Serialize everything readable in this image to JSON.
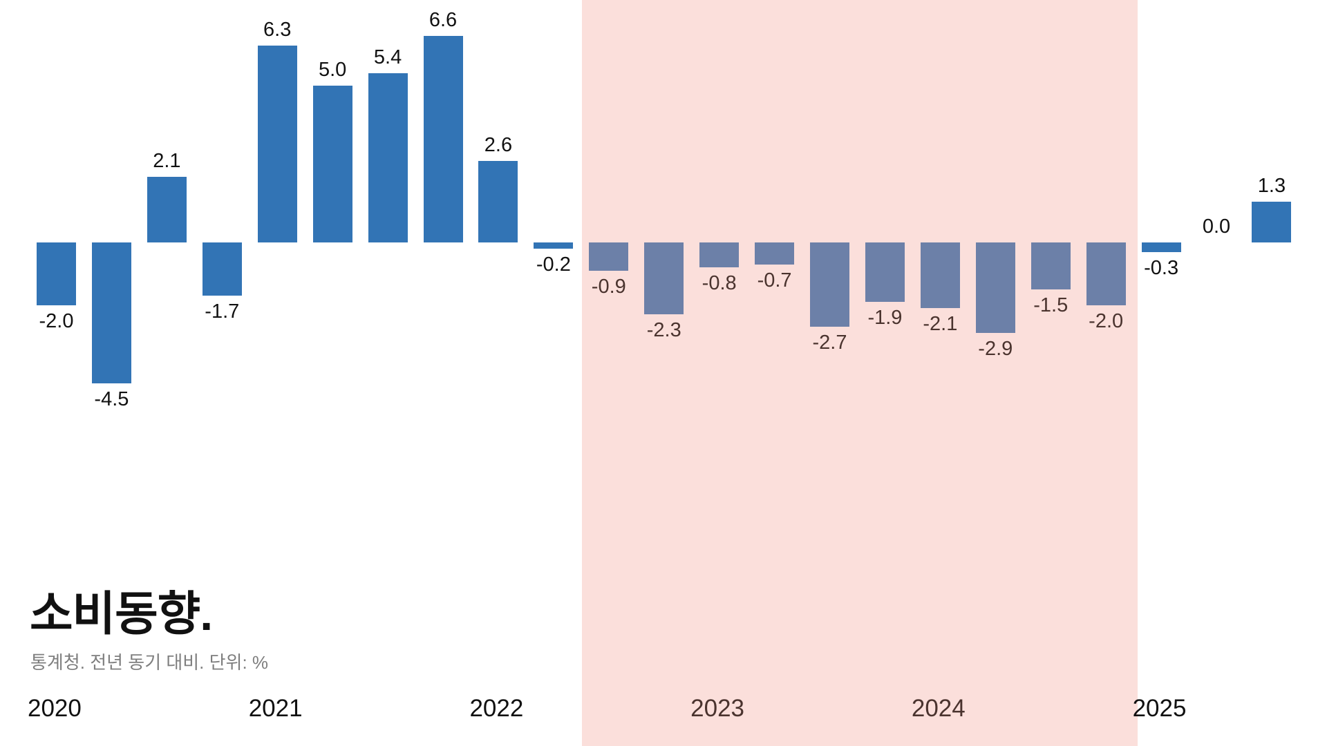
{
  "chart_data": {
    "type": "bar",
    "title": "소비동향.",
    "subtitle": "통계청. 전년 동기 대비. 단위: %",
    "unit": "%",
    "grid": false,
    "legend": false,
    "value_labels_shown": true,
    "highlight_band_range": "2022 Q3 - 2024 Q4",
    "x_axis": [
      {
        "label": "2020",
        "highlighted": false
      },
      {
        "label": "2021",
        "highlighted": false
      },
      {
        "label": "2022",
        "highlighted": false
      },
      {
        "label": "2023",
        "highlighted": true
      },
      {
        "label": "2024",
        "highlighted": true
      },
      {
        "label": "2025",
        "highlighted": false
      }
    ],
    "points": [
      {
        "period": "2020 Q1",
        "value": -2.0,
        "label": "-2.0",
        "highlighted": false
      },
      {
        "period": "2020 Q2",
        "value": -4.5,
        "label": "-4.5",
        "highlighted": false
      },
      {
        "period": "2020 Q3",
        "value": 2.1,
        "label": "2.1",
        "highlighted": false
      },
      {
        "period": "2020 Q4",
        "value": -1.7,
        "label": "-1.7",
        "highlighted": false
      },
      {
        "period": "2021 Q1",
        "value": 6.3,
        "label": "6.3",
        "highlighted": false
      },
      {
        "period": "2021 Q2",
        "value": 5.0,
        "label": "5.0",
        "highlighted": false
      },
      {
        "period": "2021 Q3",
        "value": 5.4,
        "label": "5.4",
        "highlighted": false
      },
      {
        "period": "2021 Q4",
        "value": 6.6,
        "label": "6.6",
        "highlighted": false
      },
      {
        "period": "2022 Q1",
        "value": 2.6,
        "label": "2.6",
        "highlighted": false
      },
      {
        "period": "2022 Q2",
        "value": -0.2,
        "label": "-0.2",
        "highlighted": false
      },
      {
        "period": "2022 Q3",
        "value": -0.9,
        "label": "-0.9",
        "highlighted": true
      },
      {
        "period": "2022 Q4",
        "value": -2.3,
        "label": "-2.3",
        "highlighted": true
      },
      {
        "period": "2023 Q1",
        "value": -0.8,
        "label": "-0.8",
        "highlighted": true
      },
      {
        "period": "2023 Q2",
        "value": -0.7,
        "label": "-0.7",
        "highlighted": true
      },
      {
        "period": "2023 Q3",
        "value": -2.7,
        "label": "-2.7",
        "highlighted": true
      },
      {
        "period": "2023 Q4",
        "value": -1.9,
        "label": "-1.9",
        "highlighted": true
      },
      {
        "period": "2024 Q1",
        "value": -2.1,
        "label": "-2.1",
        "highlighted": true
      },
      {
        "period": "2024 Q2",
        "value": -2.9,
        "label": "-2.9",
        "highlighted": true
      },
      {
        "period": "2024 Q3",
        "value": -1.5,
        "label": "-1.5",
        "highlighted": true
      },
      {
        "period": "2024 Q4",
        "value": -2.0,
        "label": "-2.0",
        "highlighted": true
      },
      {
        "period": "2025 Q1",
        "value": -0.3,
        "label": "-0.3",
        "highlighted": false
      },
      {
        "period": "2025 Q2",
        "value": 0.0,
        "label": "0.0",
        "highlighted": false
      },
      {
        "period": "2025 Q3",
        "value": 1.3,
        "label": "1.3",
        "highlighted": false
      }
    ],
    "colors": {
      "background": "#ffffff",
      "bar_normal": "#3274b5",
      "bar_highlighted": "#6c80a8",
      "highlight_band": "#fbdfdb",
      "label_normal": "#111111",
      "label_highlighted": "#4a332e",
      "title": "#111111",
      "subtitle": "#7e7e7e"
    }
  }
}
